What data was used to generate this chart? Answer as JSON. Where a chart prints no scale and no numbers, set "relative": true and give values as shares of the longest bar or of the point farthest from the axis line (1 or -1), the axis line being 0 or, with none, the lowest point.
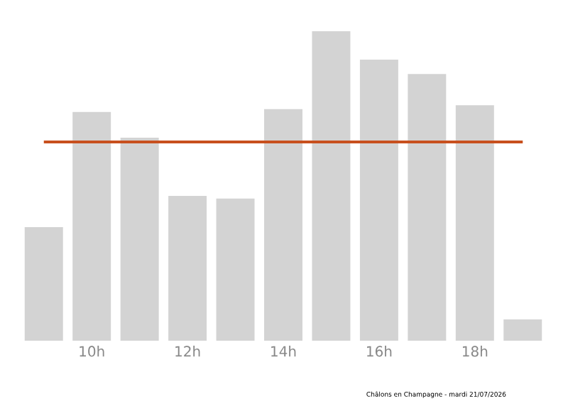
{
  "chart_data": {
    "type": "bar",
    "relative": true,
    "categories": [
      null,
      "10h",
      null,
      "12h",
      null,
      "14h",
      null,
      "16h",
      null,
      "18h",
      null
    ],
    "values": [
      0.367,
      0.739,
      0.656,
      0.468,
      0.459,
      0.748,
      1,
      0.908,
      0.862,
      0.761,
      0.069
    ],
    "color": "#d3d3d3",
    "ref_lines": [
      {
        "axis": "y",
        "value": 0.642,
        "color": "#c8501e"
      }
    ],
    "annotations": [
      "Châlons en Champagne - mardi 21/07/2026"
    ]
  }
}
